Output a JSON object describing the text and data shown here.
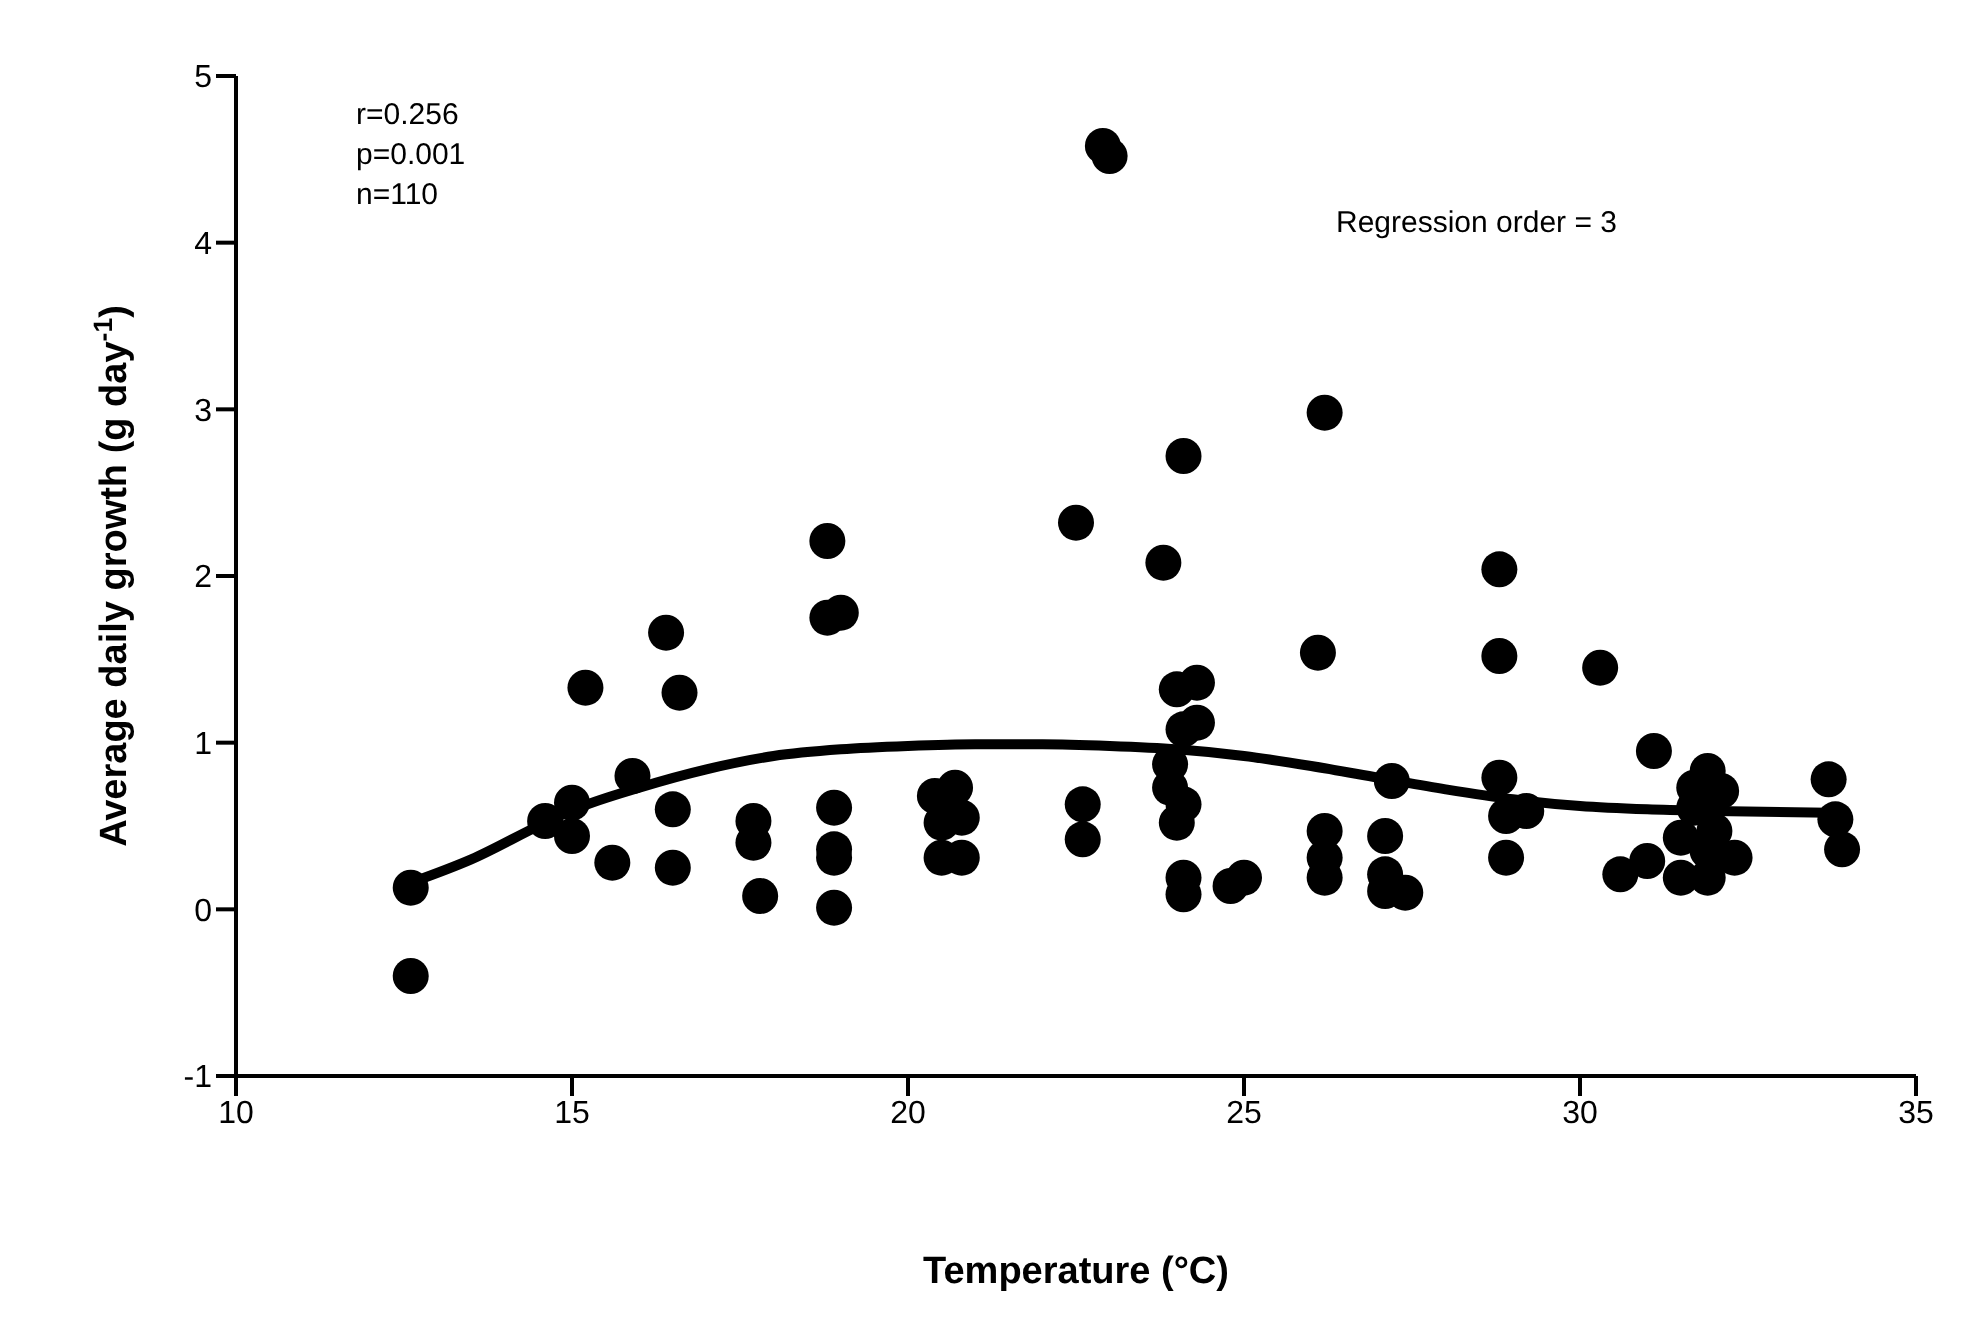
{
  "chart_data": {
    "type": "scatter",
    "xlabel": "Temperature (°C)",
    "ylabel": "Average daily growth (g day$^{-1}$)",
    "xlim": [
      10,
      35
    ],
    "xticks": [
      10,
      15,
      20,
      25,
      30,
      35
    ],
    "ylim": [
      -1,
      5
    ],
    "yticks": [
      -1,
      0,
      1,
      2,
      3,
      4,
      5
    ],
    "annotations": [
      "r=0.256",
      "p=0.001",
      "n=110",
      "Regression order = 3"
    ],
    "series": [
      {
        "color": "#000000",
        "marker": "circle",
        "x": [
          12.6,
          12.6,
          14.6,
          15.0,
          15.0,
          15.9,
          15.6,
          15.2,
          16.4,
          16.6,
          16.5,
          16.5,
          17.7,
          17.7,
          17.8,
          22.9,
          23.0,
          26.2,
          24.1,
          22.5,
          23.8,
          18.8,
          18.8,
          19.0,
          26.1,
          24.0,
          24.3,
          24.1,
          24.3,
          23.9,
          23.9,
          24.1,
          24.0,
          18.9,
          18.9,
          18.9,
          18.9,
          20.4,
          20.7,
          20.5,
          20.8,
          20.5,
          20.8,
          22.6,
          22.6,
          24.1,
          24.1,
          24.8,
          25.0,
          26.2,
          26.2,
          26.2,
          28.8,
          28.8,
          30.3,
          31.1,
          27.2,
          28.8,
          28.9,
          29.2,
          28.9,
          27.1,
          27.1,
          27.4,
          27.1,
          30.6,
          31.0,
          31.5,
          31.5,
          31.9,
          31.9,
          31.7,
          32.1,
          31.7,
          32.0,
          31.9,
          32.3,
          33.7,
          33.8,
          33.9
        ],
        "values": [
          0.13,
          -0.4,
          0.53,
          0.64,
          0.44,
          0.8,
          0.28,
          1.33,
          1.66,
          1.3,
          0.6,
          0.25,
          0.53,
          0.4,
          0.08,
          4.58,
          4.52,
          2.98,
          2.72,
          2.32,
          2.08,
          2.21,
          1.75,
          1.78,
          1.54,
          1.32,
          1.36,
          1.08,
          1.12,
          0.87,
          0.73,
          0.63,
          0.52,
          0.61,
          0.36,
          0.31,
          0.01,
          0.68,
          0.73,
          0.52,
          0.55,
          0.31,
          0.31,
          0.63,
          0.42,
          0.19,
          0.09,
          0.14,
          0.19,
          0.47,
          0.31,
          0.19,
          2.04,
          1.52,
          1.45,
          0.95,
          0.77,
          0.79,
          0.56,
          0.59,
          0.31,
          0.44,
          0.21,
          0.1,
          0.11,
          0.21,
          0.29,
          0.43,
          0.19,
          0.19,
          0.83,
          0.73,
          0.71,
          0.61,
          0.47,
          0.35,
          0.31,
          0.78,
          0.54,
          0.36
        ]
      },
      {
        "type": "line",
        "color": "#000000",
        "line_style": "solid",
        "x": [
          12.6,
          13.5,
          14.6,
          15.1,
          16,
          17,
          18,
          19,
          20,
          21,
          22,
          23,
          24,
          25,
          26,
          27,
          28,
          29,
          30,
          31,
          32,
          33.7
        ],
        "values": [
          0.16,
          0.3,
          0.52,
          0.61,
          0.73,
          0.84,
          0.92,
          0.96,
          0.98,
          0.99,
          0.99,
          0.98,
          0.96,
          0.92,
          0.86,
          0.79,
          0.72,
          0.66,
          0.62,
          0.6,
          0.59,
          0.58
        ]
      }
    ]
  }
}
